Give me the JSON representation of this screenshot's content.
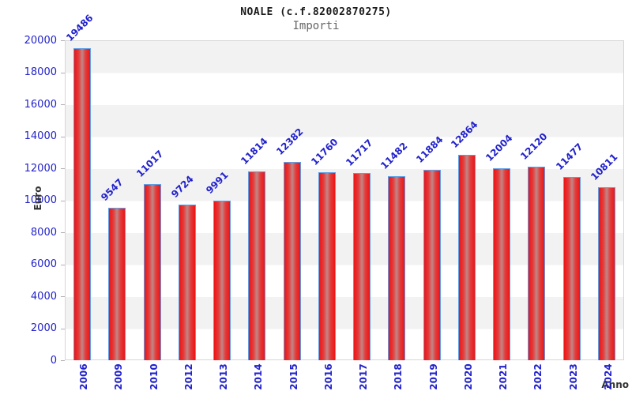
{
  "header": {
    "title": "NOALE (c.f.82002870275)",
    "subtitle": "Importi"
  },
  "chart_data": {
    "type": "bar",
    "title": "NOALE (c.f.82002870275)",
    "subtitle": "Importi",
    "xlabel": "Anno",
    "ylabel": "Euro",
    "categories": [
      "2006",
      "2009",
      "2010",
      "2012",
      "2013",
      "2014",
      "2015",
      "2016",
      "2017",
      "2018",
      "2019",
      "2020",
      "2021",
      "2022",
      "2023",
      "2024"
    ],
    "values": [
      19486,
      9547,
      11017,
      9724,
      9991,
      11814,
      12382,
      11760,
      11717,
      11482,
      11884,
      12864,
      12004,
      12120,
      11477,
      10811
    ],
    "ylim": [
      0,
      20000
    ],
    "ytick_step": 2000,
    "yticks": [
      0,
      2000,
      4000,
      6000,
      8000,
      10000,
      12000,
      14000,
      16000,
      18000,
      20000
    ],
    "grid": "alternating-horizontal-bands",
    "legend_position": "none",
    "bar_labels_rotation_deg": -45,
    "xtick_rotation_deg": -90
  },
  "colors": {
    "axis_text_blue": "#2222cc",
    "bar_edge_red": "#ed1515",
    "bar_center_highlight": "#c18787",
    "bar_border_blue": "#5e9ee6",
    "band_gray": "#f2f2f2",
    "plot_border": "#d6d6d6",
    "title_text": "#1a1a1a",
    "subtitle_text": "#666666"
  }
}
